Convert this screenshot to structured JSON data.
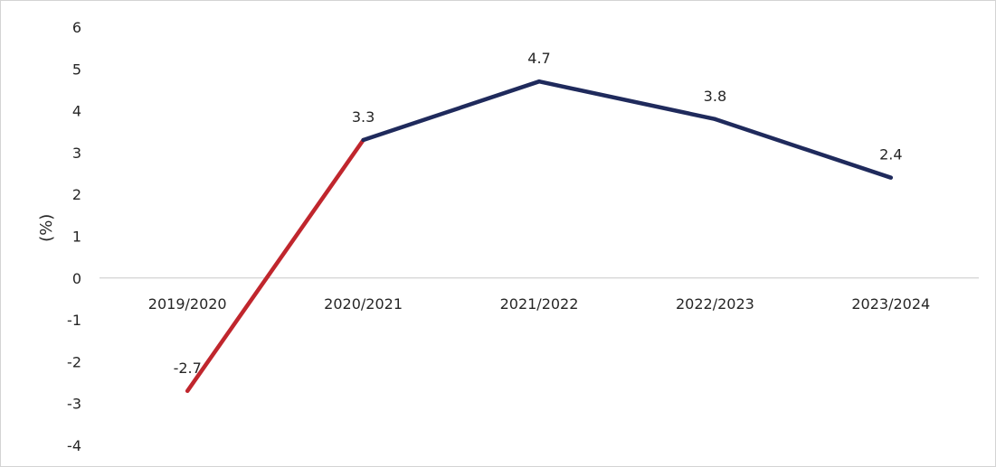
{
  "chart_data": {
    "type": "line",
    "categories": [
      "2019/2020",
      "2020/2021",
      "2021/2022",
      "2022/2023",
      "2023/2024"
    ],
    "values": [
      -2.7,
      3.3,
      4.7,
      3.8,
      2.4
    ],
    "data_labels": [
      "-2.7",
      "3.3",
      "4.7",
      "3.8",
      "2.4"
    ],
    "ylabel": "(%)",
    "ylim": [
      -4,
      6
    ],
    "yticks": [
      6,
      5,
      4,
      3,
      2,
      1,
      0,
      -1,
      -2,
      -3,
      -4
    ],
    "grid": false,
    "colors": {
      "first_segment": "#C0262D",
      "line": "#1F2A5C",
      "axis": "#c8c8c8"
    }
  }
}
